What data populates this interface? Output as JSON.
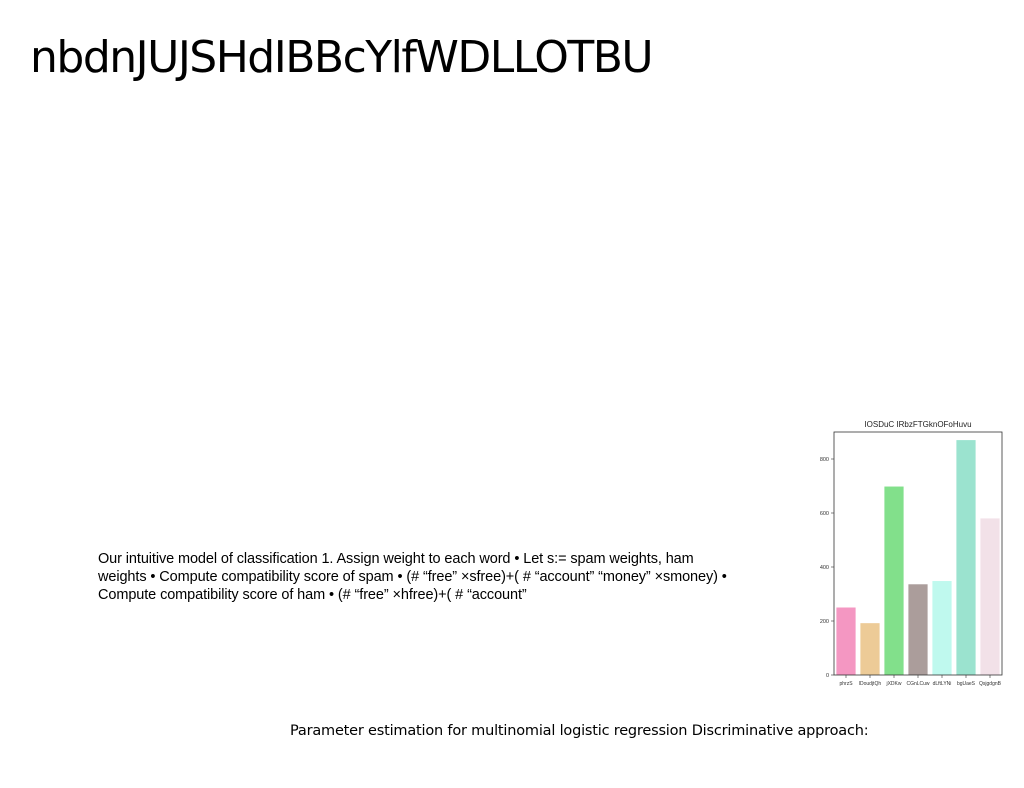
{
  "slide": {
    "title": "nbdnJUJSHdIBBcYlfWDLLOTBU",
    "body": "Our intuitive model of classification 1. Assign weight to each word • Let s:= spam weights, ham weights • Compute compatibility score of spam • (# “free” ×sfree)+( # “account” “money” ×smoney) • Compute compatibility score of ham • (# “free” ×hfree)+( # “account”",
    "caption": "Parameter estimation for multinomial logistic regression Discriminative approach:"
  },
  "chart_data": {
    "type": "bar",
    "title": "IOSDuC IRbzFTGknOFoHuvu",
    "xlabel": "",
    "ylabel": "",
    "categories": [
      "phrzS",
      "lDoudjtQh",
      "jXDKw",
      "CGnLCuw",
      "dLftLYNi",
      "bgUaeS",
      "QsjgdgnB"
    ],
    "values": [
      250,
      192,
      698,
      336,
      348,
      870,
      580
    ],
    "colors": [
      "#f497c2",
      "#edcb97",
      "#82e08b",
      "#ab9d9b",
      "#bff9ee",
      "#9be3cf",
      "#f2e1e8"
    ],
    "ylim": [
      0,
      900
    ],
    "yticks": [
      0,
      200,
      400,
      600,
      800
    ],
    "grid": false
  }
}
